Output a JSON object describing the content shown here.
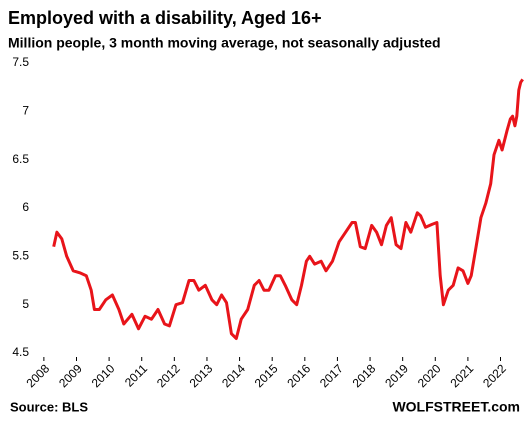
{
  "chart_data": {
    "type": "line",
    "title": "Employed with a disability,  Aged 16+",
    "subtitle": "Million people, 3 month moving average, not seasonally adjusted",
    "source": "Source: BLS",
    "credit": "WOLFSTREET.com",
    "x": [
      2008.3,
      2008.4,
      2008.55,
      2008.7,
      2008.9,
      2009.1,
      2009.3,
      2009.45,
      2009.55,
      2009.7,
      2009.9,
      2010.1,
      2010.3,
      2010.45,
      2010.7,
      2010.9,
      2011.1,
      2011.3,
      2011.5,
      2011.7,
      2011.85,
      2012.05,
      2012.25,
      2012.45,
      2012.6,
      2012.75,
      2012.95,
      2013.15,
      2013.3,
      2013.45,
      2013.6,
      2013.75,
      2013.9,
      2014.05,
      2014.25,
      2014.45,
      2014.6,
      2014.75,
      2014.9,
      2015.1,
      2015.25,
      2015.4,
      2015.6,
      2015.75,
      2015.9,
      2016.05,
      2016.15,
      2016.3,
      2016.5,
      2016.65,
      2016.85,
      2017.05,
      2017.25,
      2017.45,
      2017.55,
      2017.7,
      2017.85,
      2018.05,
      2018.2,
      2018.35,
      2018.5,
      2018.65,
      2018.8,
      2018.95,
      2019.1,
      2019.25,
      2019.45,
      2019.55,
      2019.7,
      2019.9,
      2020.05,
      2020.15,
      2020.25,
      2020.4,
      2020.55,
      2020.7,
      2020.85,
      2021.0,
      2021.1,
      2021.25,
      2021.4,
      2021.55,
      2021.7,
      2021.8,
      2021.95,
      2022.05,
      2022.2,
      2022.3,
      2022.37,
      2022.44,
      2022.5,
      2022.56,
      2022.62,
      2022.68
    ],
    "series": [
      {
        "name": "Employed with a disability",
        "color": "#e8141a",
        "values": [
          5.6,
          5.75,
          5.68,
          5.5,
          5.35,
          5.33,
          5.3,
          5.15,
          4.95,
          4.95,
          5.05,
          5.1,
          4.95,
          4.8,
          4.9,
          4.75,
          4.88,
          4.85,
          4.95,
          4.8,
          4.78,
          5.0,
          5.02,
          5.25,
          5.25,
          5.15,
          5.2,
          5.05,
          5.0,
          5.1,
          5.02,
          4.7,
          4.65,
          4.85,
          4.95,
          5.2,
          5.25,
          5.15,
          5.15,
          5.3,
          5.3,
          5.2,
          5.05,
          5.0,
          5.2,
          5.45,
          5.5,
          5.42,
          5.45,
          5.35,
          5.45,
          5.65,
          5.75,
          5.85,
          5.85,
          5.6,
          5.58,
          5.82,
          5.75,
          5.62,
          5.82,
          5.9,
          5.62,
          5.58,
          5.85,
          5.75,
          5.95,
          5.92,
          5.8,
          5.83,
          5.85,
          5.3,
          5.0,
          5.15,
          5.2,
          5.38,
          5.35,
          5.22,
          5.3,
          5.6,
          5.9,
          6.05,
          6.25,
          6.55,
          6.7,
          6.6,
          6.8,
          6.92,
          6.95,
          6.85,
          6.95,
          7.22,
          7.3,
          7.33
        ]
      }
    ],
    "xlim": [
      2007.82,
      2022.72
    ],
    "xticks": [
      2008,
      2009,
      2010,
      2011,
      2012,
      2013,
      2014,
      2015,
      2016,
      2017,
      2018,
      2019,
      2020,
      2021,
      2022
    ],
    "ylim": [
      4.5,
      7.5
    ],
    "yticks": [
      4.5,
      5.0,
      5.5,
      6.0,
      6.5,
      7.0,
      7.5
    ],
    "grid": false
  }
}
